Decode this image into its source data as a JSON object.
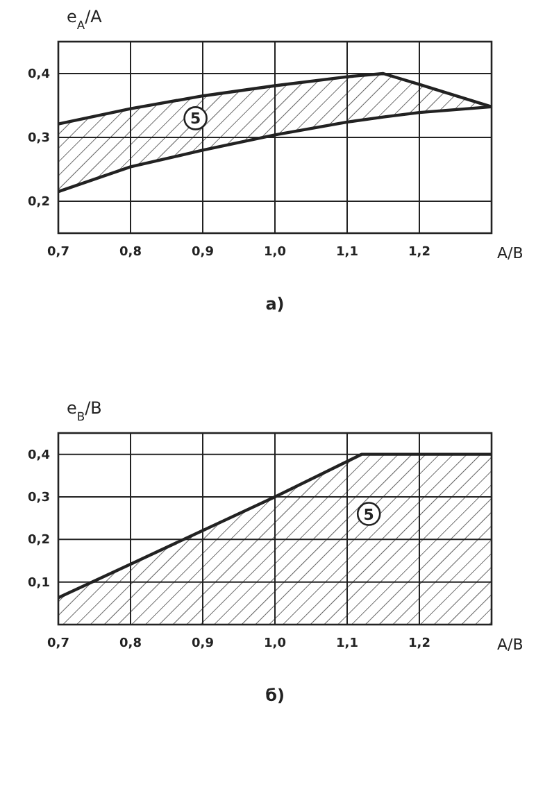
{
  "chart_data": [
    {
      "type": "area",
      "title": "a)",
      "xlabel": "A/B",
      "ylabel": "e$_{A}$/A",
      "grid": true,
      "xlim": [
        0.7,
        1.3
      ],
      "ylim": [
        0.15,
        0.45
      ],
      "xticks": [
        {
          "value": 0.7,
          "label": "0,7"
        },
        {
          "value": 0.8,
          "label": "0,8"
        },
        {
          "value": 0.9,
          "label": "0,9"
        },
        {
          "value": 1.0,
          "label": "1,0"
        },
        {
          "value": 1.1,
          "label": "1,1"
        },
        {
          "value": 1.2,
          "label": "1,2"
        },
        {
          "value": 1.3,
          "label": null
        }
      ],
      "yticks": [
        {
          "value": 0.2,
          "label": "0,2"
        },
        {
          "value": 0.3,
          "label": "0,3"
        },
        {
          "value": 0.4,
          "label": "0,4"
        }
      ],
      "series": [
        {
          "type": "line",
          "color": "#222222",
          "x": [
            0.7,
            0.8,
            0.9,
            1.0,
            1.1,
            1.15,
            1.2,
            1.3
          ],
          "values": [
            0.215,
            0.254,
            0.28,
            0.304,
            0.324,
            0.332,
            0.339,
            0.348
          ]
        },
        {
          "color": "#222222",
          "x": [
            0.7,
            0.8,
            0.9,
            1.0,
            1.1,
            1.15,
            1.2,
            1.3
          ],
          "values": [
            0.321,
            0.345,
            0.365,
            0.381,
            0.395,
            0.4,
            0.383,
            0.348
          ]
        }
      ],
      "annotations": [
        {
          "text": "5",
          "x": 0.89,
          "y": 0.33
        }
      ]
    },
    {
      "type": "area",
      "title": "б)",
      "xlabel": "A/B",
      "ylabel": "e$_{B}$/B",
      "grid": true,
      "xlim": [
        0.7,
        1.3
      ],
      "ylim": [
        0,
        0.45
      ],
      "xticks": [
        {
          "value": 0.7,
          "label": "0,7"
        },
        {
          "value": 0.8,
          "label": "0,8"
        },
        {
          "value": 0.9,
          "label": "0,9"
        },
        {
          "value": 1.0,
          "label": "1,0"
        },
        {
          "value": 1.1,
          "label": "1,1"
        },
        {
          "value": 1.2,
          "label": "1,2"
        },
        {
          "value": 1.3,
          "label": null
        }
      ],
      "yticks": [
        {
          "value": 0.1,
          "label": "0,1"
        },
        {
          "value": 0.2,
          "label": "0,2"
        },
        {
          "value": 0.3,
          "label": "0,3"
        },
        {
          "value": 0.4,
          "label": "0,4"
        }
      ],
      "series": [
        {
          "color": "#222222",
          "x": [
            0.7,
            0.8,
            0.9,
            1.0,
            1.12,
            1.3
          ],
          "values": [
            0.063,
            0.142,
            0.221,
            0.3,
            0.4,
            0.4
          ]
        }
      ],
      "annotations": [
        {
          "text": "5",
          "x": 1.13,
          "y": 0.26
        }
      ]
    }
  ]
}
